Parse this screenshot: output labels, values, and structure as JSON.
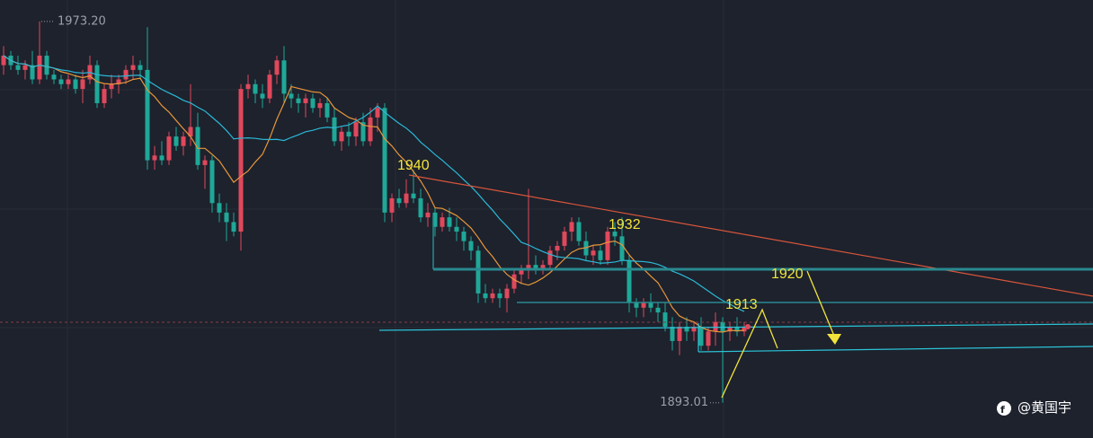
{
  "chart_data": {
    "type": "candlestick",
    "ohlc": [
      [
        1964,
        1968,
        1962,
        1966
      ],
      [
        1966,
        1967,
        1963,
        1964
      ],
      [
        1964,
        1966,
        1962,
        1963
      ],
      [
        1963,
        1965,
        1961,
        1964
      ],
      [
        1964,
        1967,
        1960,
        1961
      ],
      [
        1961,
        1973.2,
        1960,
        1966
      ],
      [
        1966,
        1967,
        1961,
        1962
      ],
      [
        1962,
        1963,
        1960,
        1961
      ],
      [
        1961,
        1962,
        1959,
        1960
      ],
      [
        1960,
        1962,
        1959,
        1961
      ],
      [
        1961,
        1962,
        1958,
        1959
      ],
      [
        1959,
        1963,
        1956,
        1961
      ],
      [
        1961,
        1966,
        1960,
        1964
      ],
      [
        1964,
        1965,
        1955,
        1956
      ],
      [
        1956,
        1960,
        1955,
        1959
      ],
      [
        1959,
        1962,
        1957,
        1960
      ],
      [
        1960,
        1962,
        1958,
        1961
      ],
      [
        1961,
        1964,
        1960,
        1963
      ],
      [
        1963,
        1966,
        1961,
        1964
      ],
      [
        1964,
        1965,
        1961,
        1963
      ],
      [
        1963,
        1972,
        1942,
        1944
      ],
      [
        1944,
        1947,
        1942,
        1945
      ],
      [
        1945,
        1948,
        1943,
        1944
      ],
      [
        1944,
        1950,
        1943,
        1949
      ],
      [
        1949,
        1951,
        1946,
        1947
      ],
      [
        1947,
        1950,
        1945,
        1949
      ],
      [
        1949,
        1960,
        1947,
        1951
      ],
      [
        1951,
        1954,
        1942,
        1943
      ],
      [
        1943,
        1945,
        1938,
        1944
      ],
      [
        1944,
        1945,
        1933,
        1935
      ],
      [
        1935,
        1937,
        1931,
        1933
      ],
      [
        1933,
        1935,
        1927,
        1931
      ],
      [
        1931,
        1933,
        1928,
        1929
      ],
      [
        1929,
        1960,
        1925,
        1959
      ],
      [
        1959,
        1962,
        1957,
        1960
      ],
      [
        1960,
        1961,
        1956,
        1958
      ],
      [
        1958,
        1960,
        1955,
        1957
      ],
      [
        1957,
        1963,
        1956,
        1962
      ],
      [
        1962,
        1966,
        1960,
        1965
      ],
      [
        1965,
        1968,
        1956,
        1958
      ],
      [
        1958,
        1960,
        1955,
        1957
      ],
      [
        1957,
        1958,
        1954,
        1956
      ],
      [
        1956,
        1958,
        1953,
        1957
      ],
      [
        1957,
        1958,
        1954,
        1955
      ],
      [
        1955,
        1957,
        1953,
        1956
      ],
      [
        1956,
        1957,
        1952,
        1953
      ],
      [
        1953,
        1955,
        1947,
        1948
      ],
      [
        1948,
        1951,
        1946,
        1950
      ],
      [
        1950,
        1952,
        1947,
        1949
      ],
      [
        1949,
        1953,
        1947,
        1952
      ],
      [
        1952,
        1954,
        1947,
        1948
      ],
      [
        1948,
        1955,
        1947,
        1953
      ],
      [
        1953,
        1956,
        1950,
        1955
      ],
      [
        1955,
        1956,
        1931,
        1933
      ],
      [
        1933,
        1937,
        1931,
        1936
      ],
      [
        1936,
        1938,
        1934,
        1935
      ],
      [
        1935,
        1940,
        1934,
        1937
      ],
      [
        1937,
        1942,
        1935,
        1936
      ],
      [
        1936,
        1938,
        1931,
        1932
      ],
      [
        1932,
        1935,
        1930,
        1933
      ],
      [
        1933,
        1934,
        1928,
        1930
      ],
      [
        1930,
        1933,
        1929,
        1932
      ],
      [
        1932,
        1934,
        1929,
        1930
      ],
      [
        1930,
        1932,
        1927,
        1929
      ],
      [
        1929,
        1930,
        1925,
        1927
      ],
      [
        1927,
        1928,
        1923,
        1925
      ],
      [
        1925,
        1926,
        1914,
        1916
      ],
      [
        1916,
        1918,
        1914,
        1915
      ],
      [
        1915,
        1917,
        1914,
        1916
      ],
      [
        1916,
        1917,
        1913,
        1915
      ],
      [
        1915,
        1918,
        1912,
        1917
      ],
      [
        1917,
        1921,
        1916,
        1920
      ],
      [
        1920,
        1922,
        1918,
        1921
      ],
      [
        1921,
        1938,
        1919,
        1922
      ],
      [
        1922,
        1924,
        1920,
        1921
      ],
      [
        1921,
        1923,
        1920,
        1922
      ],
      [
        1922,
        1926,
        1921,
        1925
      ],
      [
        1925,
        1927,
        1923,
        1926
      ],
      [
        1926,
        1930,
        1925,
        1929
      ],
      [
        1929,
        1932,
        1927,
        1931
      ],
      [
        1931,
        1932,
        1926,
        1927
      ],
      [
        1927,
        1929,
        1923,
        1924
      ],
      [
        1924,
        1926,
        1922,
        1925
      ],
      [
        1925,
        1926,
        1922,
        1923
      ],
      [
        1923,
        1930,
        1922,
        1929
      ],
      [
        1929,
        1931,
        1926,
        1928
      ],
      [
        1928,
        1932,
        1922,
        1923
      ],
      [
        1923,
        1924,
        1912,
        1914
      ],
      [
        1914,
        1915,
        1911,
        1913
      ],
      [
        1913,
        1915,
        1911,
        1914
      ],
      [
        1914,
        1916,
        1912,
        1913
      ],
      [
        1913,
        1914,
        1910,
        1912
      ],
      [
        1912,
        1914,
        1908,
        1909
      ],
      [
        1909,
        1911,
        1904,
        1906
      ],
      [
        1906,
        1910,
        1903,
        1909
      ],
      [
        1909,
        1911,
        1906,
        1908
      ],
      [
        1908,
        1910,
        1906,
        1909
      ],
      [
        1909,
        1911,
        1904,
        1905
      ],
      [
        1905,
        1909,
        1904,
        1908
      ],
      [
        1908,
        1912,
        1905,
        1910
      ],
      [
        1910,
        1911,
        1893.01,
        1908
      ],
      [
        1908,
        1910,
        1906,
        1909
      ],
      [
        1909,
        1911,
        1907,
        1908
      ],
      [
        1908,
        1910,
        1907,
        1909
      ]
    ],
    "up_color": "#e0485c",
    "down_color": "#1fa898",
    "ma_colors": [
      "#e8963a",
      "#2bb8d6"
    ],
    "ylim": [
      1885.6,
      1977.7
    ],
    "high_label": {
      "value": 1973.2,
      "label": "1973.20"
    },
    "low_label": {
      "value": 1893.01,
      "label": "1893.01"
    }
  },
  "annotations": [
    "1940",
    "1932",
    "1920",
    "1913"
  ],
  "watermark": "@黄国宇"
}
